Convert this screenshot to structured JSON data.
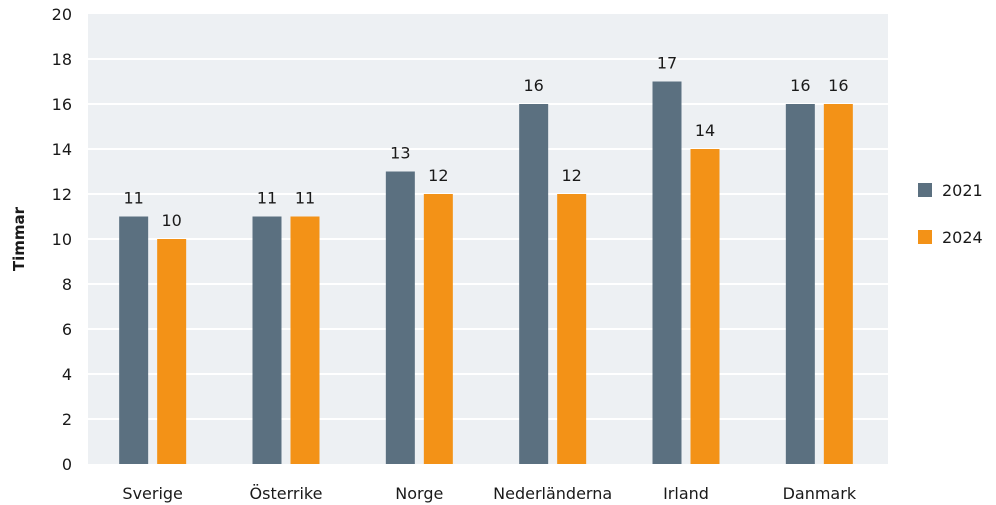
{
  "chart_data": {
    "type": "bar",
    "title": "",
    "xlabel": "",
    "ylabel": "Timmar",
    "ylim": [
      0,
      20
    ],
    "yticks": [
      "0",
      "2",
      "4",
      "6",
      "8",
      "10",
      "12",
      "14",
      "16",
      "18",
      "20"
    ],
    "grid": true,
    "legend_position": "right",
    "categories": [
      "Sverige",
      "Österrike",
      "Norge",
      "Nederländerna",
      "Irland",
      "Danmark"
    ],
    "series": [
      {
        "name": "2021",
        "color": "#5b7080",
        "values": [
          11,
          11,
          13,
          16,
          17,
          16
        ],
        "labels": [
          "11",
          "11",
          "13",
          "16",
          "17",
          "16"
        ]
      },
      {
        "name": "2024",
        "color": "#f39217",
        "values": [
          10,
          11,
          12,
          12,
          14,
          16
        ],
        "labels": [
          "10",
          "11",
          "12",
          "12",
          "14",
          "16"
        ]
      }
    ]
  },
  "colors": {
    "plot_background": "#edf0f3",
    "gridline": "#ffffff"
  }
}
